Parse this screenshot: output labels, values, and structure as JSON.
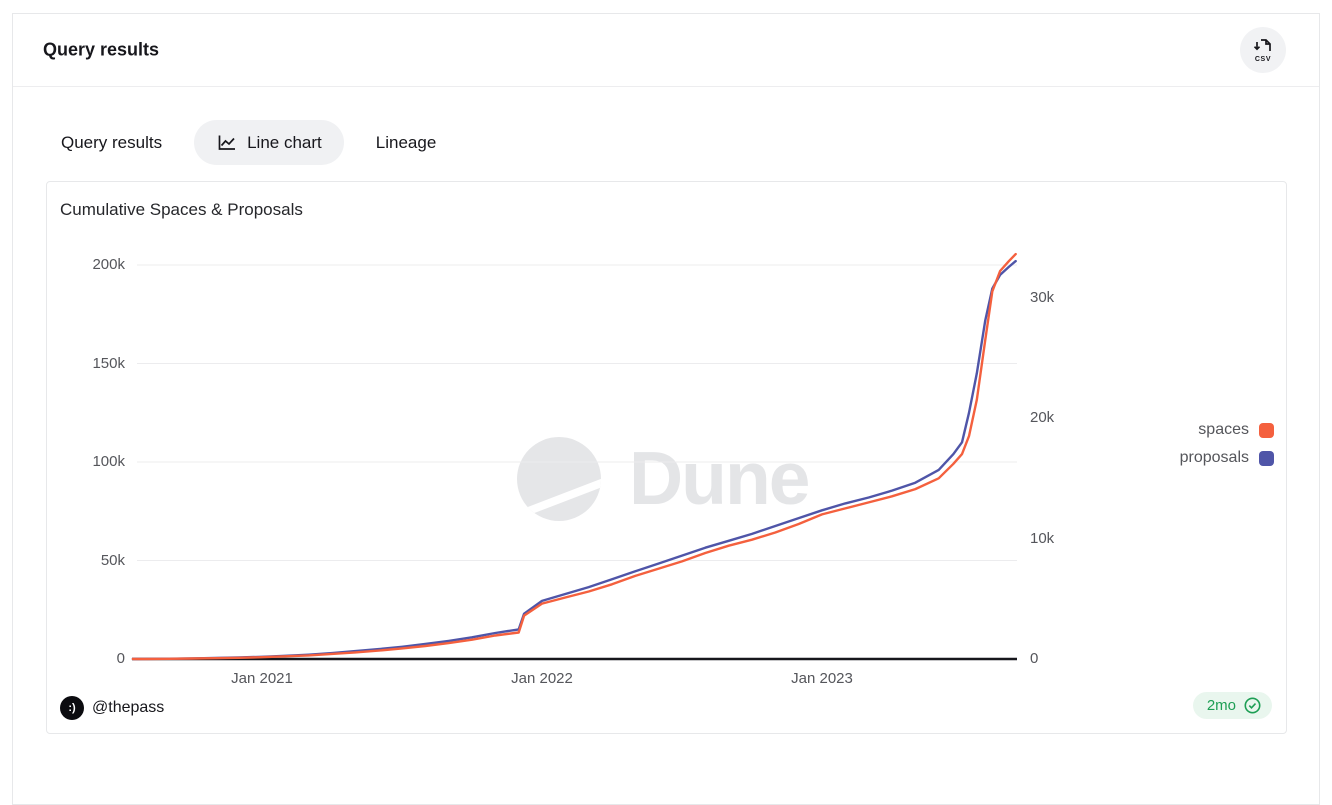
{
  "header": {
    "title": "Query results",
    "csv_button_label": "CSV"
  },
  "tabs": {
    "items": [
      {
        "label": "Query results",
        "active": false
      },
      {
        "label": "Line chart",
        "active": true
      },
      {
        "label": "Lineage",
        "active": false
      }
    ]
  },
  "chart_card": {
    "title": "Cumulative Spaces & Proposals",
    "watermark_text": "Dune",
    "author_handle": "@thepass",
    "avatar_glyph": ":)",
    "age_badge": {
      "label": "2mo"
    }
  },
  "colors": {
    "spaces": "#f4603e",
    "proposals": "#4f55a8",
    "badge_green": "#1d9e54",
    "badge_bg": "#e9f6ee",
    "axis_text": "#55565b",
    "gridline": "#ececee",
    "watermark": "#e4e5e7"
  },
  "chart_data": {
    "type": "line",
    "title": "Cumulative Spaces & Proposals",
    "grid": true,
    "legend_position": "right",
    "x_axis": {
      "ticks": [
        {
          "date": "2021-01-01",
          "label": "Jan 2021"
        },
        {
          "date": "2022-01-01",
          "label": "Jan 2022"
        },
        {
          "date": "2023-01-01",
          "label": "Jan 2023"
        }
      ],
      "range": [
        "2020-07-15",
        "2023-09-10"
      ]
    },
    "left_axis": {
      "series": "proposals",
      "range": [
        0,
        200000
      ],
      "ticks": [
        {
          "value": 0,
          "label": "0"
        },
        {
          "value": 50000,
          "label": "50k"
        },
        {
          "value": 100000,
          "label": "100k"
        },
        {
          "value": 150000,
          "label": "150k"
        },
        {
          "value": 200000,
          "label": "200k"
        }
      ]
    },
    "right_axis": {
      "series": "spaces",
      "range": [
        0,
        33000
      ],
      "ticks": [
        {
          "value": 0,
          "label": "0"
        },
        {
          "value": 10000,
          "label": "10k"
        },
        {
          "value": 20000,
          "label": "20k"
        },
        {
          "value": 30000,
          "label": "30k"
        }
      ]
    },
    "dates": [
      "2020-07-15",
      "2020-08-01",
      "2020-09-01",
      "2020-10-01",
      "2020-11-01",
      "2020-12-01",
      "2021-01-01",
      "2021-02-01",
      "2021-03-01",
      "2021-04-01",
      "2021-05-01",
      "2021-06-01",
      "2021-07-01",
      "2021-08-01",
      "2021-09-01",
      "2021-10-01",
      "2021-11-01",
      "2021-12-01",
      "2021-12-08",
      "2022-01-01",
      "2022-02-01",
      "2022-03-01",
      "2022-04-01",
      "2022-05-01",
      "2022-06-01",
      "2022-07-01",
      "2022-08-01",
      "2022-09-01",
      "2022-10-01",
      "2022-11-01",
      "2022-12-01",
      "2023-01-01",
      "2023-02-01",
      "2023-03-01",
      "2023-04-01",
      "2023-05-01",
      "2023-06-01",
      "2023-06-20",
      "2023-07-01",
      "2023-07-10",
      "2023-07-20",
      "2023-08-01",
      "2023-08-10",
      "2023-08-20",
      "2023-09-01",
      "2023-09-10"
    ],
    "series": [
      {
        "name": "spaces",
        "color": "#f4603e",
        "axis": "right",
        "values": [
          0,
          0,
          20,
          40,
          70,
          100,
          150,
          220,
          300,
          420,
          550,
          700,
          880,
          1080,
          1320,
          1600,
          1950,
          2200,
          3600,
          4600,
          5100,
          5600,
          6200,
          6900,
          7500,
          8100,
          8800,
          9400,
          9900,
          10500,
          11200,
          12000,
          12500,
          13000,
          13500,
          14100,
          15000,
          16200,
          17000,
          18500,
          21500,
          26500,
          30500,
          32200,
          33000,
          33600
        ]
      },
      {
        "name": "proposals",
        "color": "#4f55a8",
        "axis": "left",
        "values": [
          0,
          50,
          150,
          300,
          500,
          750,
          1100,
          1600,
          2200,
          3000,
          4000,
          5000,
          6200,
          7600,
          9200,
          11000,
          13200,
          15000,
          23000,
          29500,
          33000,
          36500,
          40500,
          44500,
          48500,
          52500,
          56500,
          60000,
          63500,
          67500,
          71500,
          75500,
          79000,
          82000,
          85500,
          89500,
          96000,
          104000,
          110000,
          125000,
          145000,
          172000,
          188000,
          195000,
          199000,
          202000
        ]
      }
    ]
  }
}
